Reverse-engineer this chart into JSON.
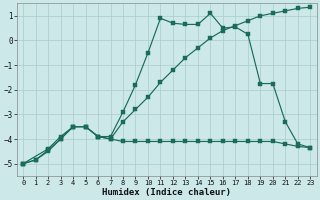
{
  "xlabel": "Humidex (Indice chaleur)",
  "xlim": [
    -0.5,
    23.5
  ],
  "ylim": [
    -5.5,
    1.5
  ],
  "yticks": [
    -5,
    -4,
    -3,
    -2,
    -1,
    0,
    1
  ],
  "xticks": [
    0,
    1,
    2,
    3,
    4,
    5,
    6,
    7,
    8,
    9,
    10,
    11,
    12,
    13,
    14,
    15,
    16,
    17,
    18,
    19,
    20,
    21,
    22,
    23
  ],
  "background_color": "#cce8e8",
  "grid_color": "#aacccc",
  "line_color": "#1a6b5a",
  "line1_x": [
    0,
    1,
    2,
    3,
    4,
    5,
    6,
    7,
    8,
    9,
    10,
    11,
    12,
    13,
    14,
    15,
    16,
    17,
    18,
    19,
    20,
    21,
    22,
    23
  ],
  "line1_y": [
    -5.0,
    -4.85,
    -4.5,
    -4.0,
    -3.5,
    -3.5,
    -3.9,
    -4.0,
    -4.1,
    -4.1,
    -4.1,
    -4.1,
    -4.1,
    -4.1,
    -4.1,
    -4.1,
    -4.1,
    -4.1,
    -4.1,
    -4.1,
    -4.1,
    -4.2,
    -4.3,
    -4.35
  ],
  "line2_x": [
    0,
    2,
    3,
    4,
    5,
    6,
    7,
    8,
    9,
    10,
    11,
    12,
    13,
    14,
    15,
    16,
    17,
    18,
    19,
    20,
    21,
    22,
    23
  ],
  "line2_y": [
    -5.0,
    -4.4,
    -3.9,
    -3.5,
    -3.5,
    -3.9,
    -4.0,
    -3.3,
    -2.8,
    -2.3,
    -1.7,
    -1.2,
    -0.7,
    -0.3,
    0.1,
    0.4,
    0.6,
    0.8,
    1.0,
    1.1,
    1.2,
    1.3,
    1.35
  ],
  "line3_x": [
    0,
    1,
    2,
    3,
    4,
    5,
    6,
    7,
    8,
    9,
    10,
    11,
    12,
    13,
    14,
    15,
    16,
    17,
    18,
    19,
    20,
    21,
    22,
    23
  ],
  "line3_y": [
    -5.0,
    -4.85,
    -4.45,
    -4.0,
    -3.5,
    -3.5,
    -3.9,
    -3.9,
    -2.9,
    -1.8,
    -0.5,
    0.9,
    0.7,
    0.65,
    0.65,
    1.1,
    0.5,
    0.55,
    0.25,
    -1.75,
    -1.75,
    -3.3,
    -4.2,
    -4.35
  ]
}
